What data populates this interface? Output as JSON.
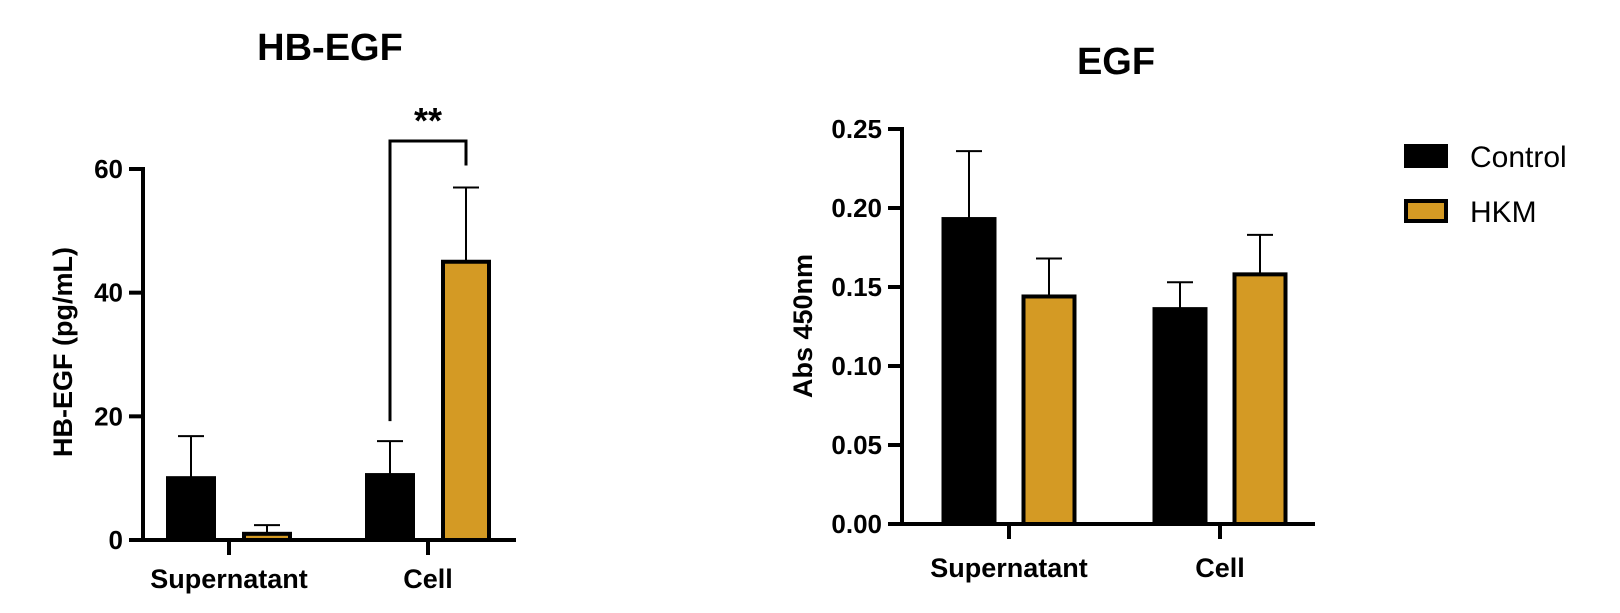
{
  "colors": {
    "control": "#000000",
    "hkm": "#D49A24",
    "outline": "#000000"
  },
  "legend": [
    {
      "name": "Control",
      "color": "#000000"
    },
    {
      "name": "HKM",
      "color": "#D49A24"
    }
  ],
  "chart_data": [
    {
      "type": "bar",
      "title": "HB-EGF",
      "ylabel": "HB-EGF (pg/mL)",
      "xlabel": "",
      "ylim": [
        0,
        60
      ],
      "yticks": [
        0,
        20,
        40,
        60
      ],
      "ytick_labels": [
        "0",
        "20",
        "40",
        "60"
      ],
      "categories": [
        "Supernatant",
        "Cell"
      ],
      "series": [
        {
          "name": "Control",
          "values": [
            10,
            10.5
          ],
          "errors": [
            6.8,
            5.5
          ]
        },
        {
          "name": "HKM",
          "values": [
            1,
            45
          ],
          "errors": [
            1.4,
            12
          ]
        }
      ],
      "significance": [
        {
          "category_index": 1,
          "label": "**"
        }
      ],
      "grid": false
    },
    {
      "type": "bar",
      "title": "EGF",
      "ylabel": "Abs 450nm",
      "xlabel": "",
      "ylim": [
        0,
        0.25
      ],
      "yticks": [
        0,
        0.05,
        0.1,
        0.15,
        0.2,
        0.25
      ],
      "ytick_labels": [
        "0.00",
        "0.05",
        "0.10",
        "0.15",
        "0.20",
        "0.25"
      ],
      "categories": [
        "Supernatant",
        "Cell"
      ],
      "series": [
        {
          "name": "Control",
          "values": [
            0.193,
            0.136
          ],
          "errors": [
            0.043,
            0.017
          ]
        },
        {
          "name": "HKM",
          "values": [
            0.144,
            0.158
          ],
          "errors": [
            0.024,
            0.025
          ]
        }
      ],
      "legend_position": "right",
      "grid": false
    }
  ]
}
